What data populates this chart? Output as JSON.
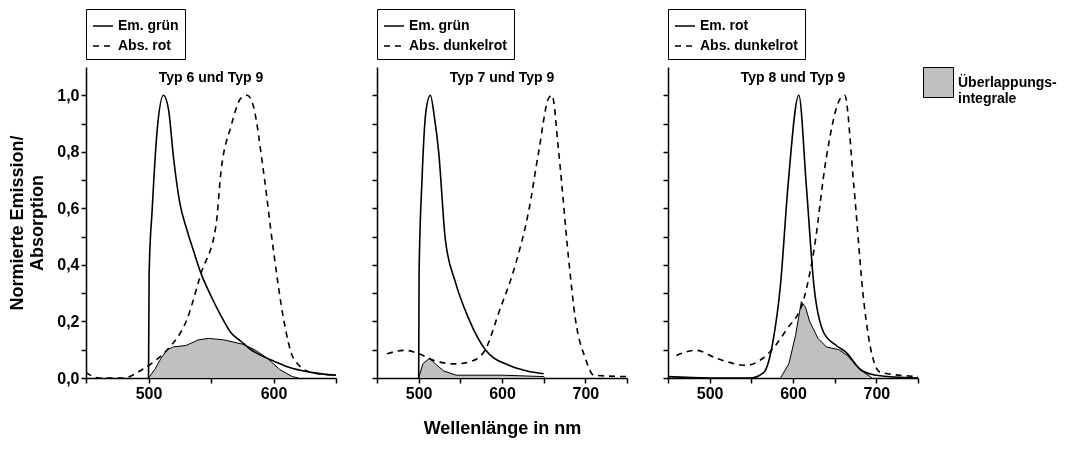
{
  "chart_data": [
    {
      "type": "line",
      "title": "Typ 6 und Typ 9",
      "ylabel": "Normierte Emission/\nAbsorption",
      "legend": "top",
      "xlim": [
        450,
        650
      ],
      "xticks": [
        {
          "value": 450,
          "label": null
        },
        500,
        {
          "value": 550,
          "label": null
        },
        600,
        {
          "value": 650,
          "label": null
        }
      ],
      "ylim": [
        0,
        1.1
      ],
      "yticks": [
        {
          "value": 0,
          "label": "0,0"
        },
        {
          "value": 0.1,
          "label": null
        },
        {
          "value": 0.2,
          "label": "0,2"
        },
        {
          "value": 0.3,
          "label": null
        },
        {
          "value": 0.4,
          "label": "0,4"
        },
        {
          "value": 0.5,
          "label": null
        },
        {
          "value": 0.6,
          "label": "0,6"
        },
        {
          "value": 0.7,
          "label": null
        },
        {
          "value": 0.8,
          "label": "0,8"
        },
        {
          "value": 0.9,
          "label": null
        },
        {
          "value": 1,
          "label": "1,0"
        }
      ],
      "series": [
        {
          "type": "area",
          "color": "#c0c0c0",
          "x": [
            500,
            505,
            510,
            515,
            520,
            530,
            540,
            548,
            560,
            575,
            585,
            595,
            605,
            615,
            620
          ],
          "values": [
            0,
            0.03,
            0.07,
            0.1,
            0.11,
            0.115,
            0.135,
            0.14,
            0.135,
            0.12,
            0.1,
            0.07,
            0.03,
            0.005,
            0
          ]
        },
        {
          "name": "Em. grün",
          "color": "#000000",
          "line_style": "solid",
          "x": [
            500,
            500.5,
            503,
            507,
            512,
            516,
            520,
            525,
            531,
            536,
            542,
            550,
            558,
            566,
            574,
            582,
            590,
            600,
            611,
            630,
            650
          ],
          "values": [
            0,
            0.37,
            0.6,
            0.88,
            1,
            0.95,
            0.78,
            0.62,
            0.52,
            0.45,
            0.37,
            0.29,
            0.22,
            0.16,
            0.13,
            0.1,
            0.08,
            0.06,
            0.04,
            0.02,
            0.01
          ]
        },
        {
          "name": "Abs. rot",
          "color": "#000000",
          "line_style": "dashed",
          "x": [
            450,
            460,
            480,
            495,
            505,
            515,
            531,
            542,
            554,
            558,
            566,
            574,
            579,
            584,
            592,
            600,
            608,
            616,
            630,
            650
          ],
          "values": [
            0.02,
            0,
            0,
            0.03,
            0.06,
            0.1,
            0.21,
            0.37,
            0.54,
            0.73,
            0.89,
            0.99,
            1,
            0.96,
            0.73,
            0.45,
            0.21,
            0.07,
            0.02,
            0.01
          ]
        }
      ]
    },
    {
      "type": "line",
      "title": "Typ 7 und Typ 9",
      "xlabel": "Wellenlänge in nm",
      "legend": "top",
      "tick_labels": "x",
      "xlim": [
        450,
        750
      ],
      "xticks": [
        {
          "value": 450,
          "label": null
        },
        500,
        {
          "value": 550,
          "label": null
        },
        600,
        {
          "value": 650,
          "label": null
        },
        700,
        {
          "value": 750,
          "label": null
        }
      ],
      "ylim": [
        0,
        1.1
      ],
      "yticks": [
        {
          "value": 0,
          "label": null
        },
        {
          "value": 0.1,
          "label": null
        },
        {
          "value": 0.2,
          "label": null
        },
        {
          "value": 0.3,
          "label": null
        },
        {
          "value": 0.4,
          "label": null
        },
        {
          "value": 0.5,
          "label": null
        },
        {
          "value": 0.6,
          "label": null
        },
        {
          "value": 0.7,
          "label": null
        },
        {
          "value": 0.8,
          "label": null
        },
        {
          "value": 0.9,
          "label": null
        },
        {
          "value": 1,
          "label": null
        }
      ],
      "series": [
        {
          "type": "area",
          "color": "#c0c0c0",
          "x": [
            500,
            505,
            513,
            520,
            530,
            545,
            600,
            650,
            651
          ],
          "values": [
            0,
            0.05,
            0.07,
            0.05,
            0.025,
            0.01,
            0.01,
            0.005,
            0
          ]
        },
        {
          "name": "Em. grün",
          "color": "#000000",
          "line_style": "solid",
          "x": [
            500,
            500.5,
            504,
            509,
            514,
            519,
            524,
            532,
            544,
            560,
            580,
            608,
            630,
            650
          ],
          "values": [
            0,
            0.37,
            0.7,
            0.95,
            1,
            0.92,
            0.8,
            0.49,
            0.34,
            0.21,
            0.1,
            0.045,
            0.025,
            0.015
          ]
        },
        {
          "name": "Abs. dunkelrot",
          "color": "#000000",
          "line_style": "dashed",
          "x": [
            462,
            484,
            500,
            520,
            544,
            564,
            580,
            596,
            616,
            632,
            644,
            656,
            660,
            668,
            680,
            688,
            700,
            710,
            750
          ],
          "values": [
            0.086,
            0.098,
            0.086,
            0.06,
            0.05,
            0.06,
            0.1,
            0.23,
            0.4,
            0.59,
            0.8,
            0.99,
            1,
            0.8,
            0.42,
            0.21,
            0.07,
            0.01,
            0.005
          ]
        }
      ]
    },
    {
      "type": "line",
      "title": "Typ 8 und Typ 9",
      "legend": "top",
      "tick_labels": "x",
      "xlim": [
        450,
        750
      ],
      "xticks": [
        {
          "value": 450,
          "label": null
        },
        500,
        {
          "value": 550,
          "label": null
        },
        600,
        {
          "value": 650,
          "label": null
        },
        700,
        {
          "value": 750,
          "label": null
        }
      ],
      "ylim": [
        0,
        1.1
      ],
      "yticks": [
        {
          "value": 0,
          "label": null
        },
        {
          "value": 0.1,
          "label": null
        },
        {
          "value": 0.2,
          "label": null
        },
        {
          "value": 0.3,
          "label": null
        },
        {
          "value": 0.4,
          "label": null
        },
        {
          "value": 0.5,
          "label": null
        },
        {
          "value": 0.6,
          "label": null
        },
        {
          "value": 0.7,
          "label": null
        },
        {
          "value": 0.8,
          "label": null
        },
        {
          "value": 0.9,
          "label": null
        },
        {
          "value": 1,
          "label": null
        }
      ],
      "series": [
        {
          "type": "area",
          "name": "Überlappungs-\nintegrale",
          "color": "#c0c0c0",
          "x": [
            585,
            595,
            603,
            610,
            615,
            620,
            630,
            640,
            655,
            665,
            680,
            690,
            695
          ],
          "values": [
            0,
            0.05,
            0.15,
            0.27,
            0.25,
            0.2,
            0.14,
            0.11,
            0.1,
            0.08,
            0.03,
            0.01,
            0
          ]
        },
        {
          "name": "Em. rot",
          "color": "#000000",
          "line_style": "solid",
          "x": [
            450,
            500,
            549,
            565,
            576,
            585,
            594,
            607,
            616,
            625,
            637,
            652,
            664,
            681,
            700,
            750
          ],
          "values": [
            0.005,
            0,
            0,
            0.02,
            0.13,
            0.33,
            0.68,
            1,
            0.68,
            0.33,
            0.16,
            0.115,
            0.09,
            0.03,
            0.01,
            0
          ]
        },
        {
          "name": "Abs. dunkelrot",
          "color": "#000000",
          "line_style": "dashed",
          "x": [
            460,
            484,
            508,
            544,
            568,
            592,
            613,
            625,
            640,
            657,
            662,
            673,
            685,
            695,
            705,
            750
          ],
          "values": [
            0.08,
            0.098,
            0.07,
            0.045,
            0.08,
            0.17,
            0.28,
            0.45,
            0.78,
            0.99,
            1,
            0.68,
            0.27,
            0.08,
            0.02,
            0.005
          ]
        }
      ]
    }
  ]
}
